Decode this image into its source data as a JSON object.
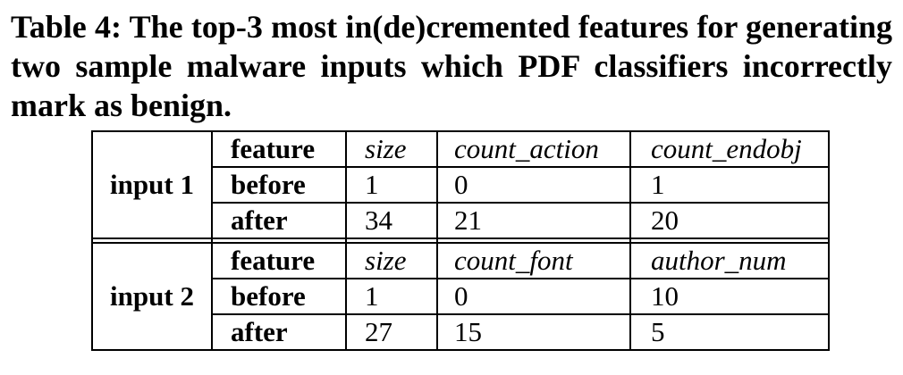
{
  "caption": "Table 4: The top-3 most in(de)cremented features for generating two sample malware inputs which PDF classifiers incorrectly mark as benign.",
  "table": {
    "groups": [
      {
        "label": "input 1",
        "rows": [
          {
            "header": "feature",
            "cells": [
              "size",
              "count_action",
              "count_endobj"
            ]
          },
          {
            "header": "before",
            "cells": [
              "1",
              "0",
              "1"
            ]
          },
          {
            "header": "after",
            "cells": [
              "34",
              "21",
              "20"
            ]
          }
        ]
      },
      {
        "label": "input 2",
        "rows": [
          {
            "header": "feature",
            "cells": [
              "size",
              "count_font",
              "author_num"
            ]
          },
          {
            "header": "before",
            "cells": [
              "1",
              "0",
              "10"
            ]
          },
          {
            "header": "after",
            "cells": [
              "27",
              "15",
              "5"
            ]
          }
        ]
      }
    ]
  }
}
